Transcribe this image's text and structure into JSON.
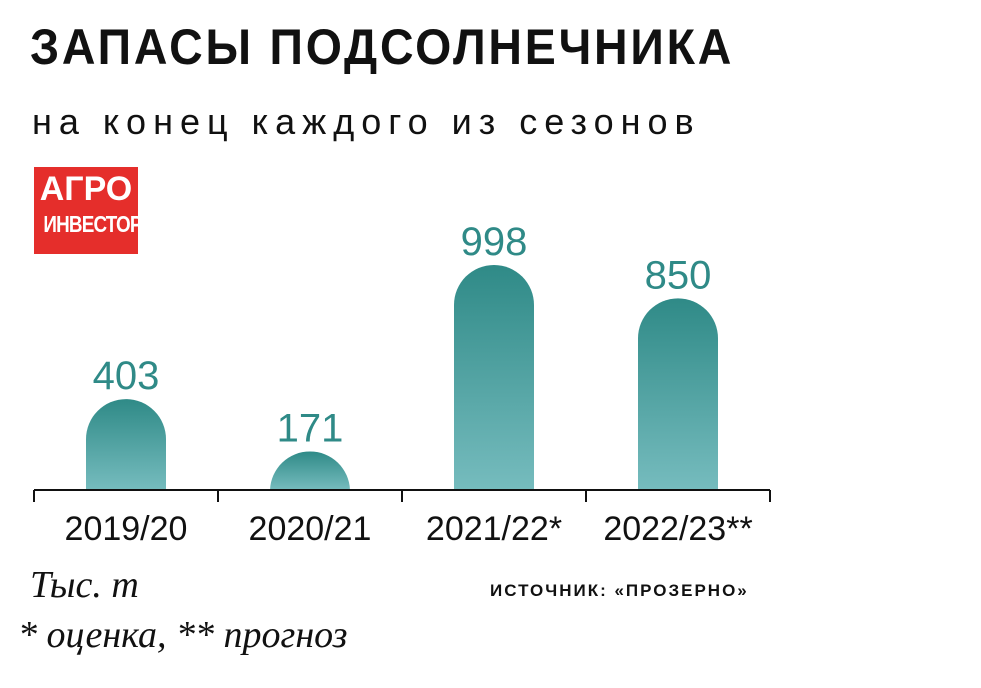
{
  "chart_data": {
    "type": "bar",
    "title": "ЗАПАСЫ ПОДСОЛНЕЧНИКА",
    "subtitle": "на конец каждого из сезонов",
    "categories": [
      "2019/20",
      "2020/21",
      "2021/22*",
      "2022/23**"
    ],
    "values": [
      403,
      171,
      998,
      850
    ],
    "ylim": [
      0,
      1100
    ],
    "grid": false,
    "unit_label": "Тыс. т",
    "footnote": "* оценка, ** прогноз",
    "source": "ИСТОЧНИК: «ПРОЗЕРНО»"
  },
  "logo": {
    "line1": "АГРО",
    "line2": "ИНВЕСТОР"
  },
  "colors": {
    "bar_top": "#2f8a87",
    "bar_bottom": "#76bcbe",
    "value_text": "#2f8a87",
    "logo_bg": "#e52e2b",
    "axis": "#111111"
  }
}
